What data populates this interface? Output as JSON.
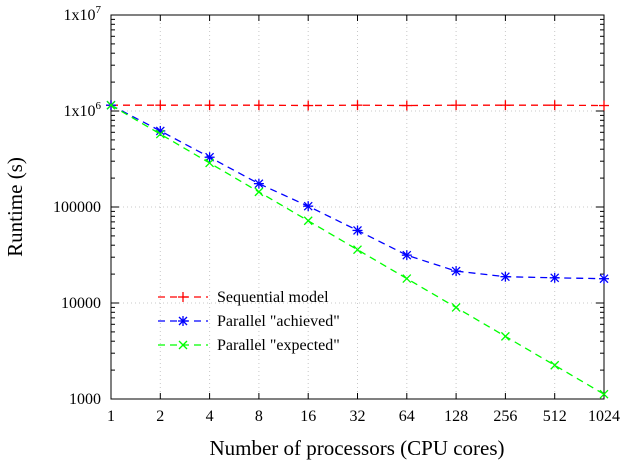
{
  "chart_data": {
    "type": "line",
    "title": "",
    "xlabel": "Number of processors (CPU cores)",
    "ylabel": "Runtime (s)",
    "x_scale": "log2",
    "y_scale": "log10",
    "x": [
      1,
      2,
      4,
      8,
      16,
      32,
      64,
      128,
      256,
      512,
      1024
    ],
    "x_tick_labels": [
      "1",
      "2",
      "4",
      "8",
      "16",
      "32",
      "64",
      "128",
      "256",
      "512",
      "1024"
    ],
    "ylim": [
      1000,
      10000000
    ],
    "y_ticks": [
      1000,
      10000,
      100000,
      1000000,
      10000000
    ],
    "y_tick_labels": [
      {
        "base": "1000",
        "sup": ""
      },
      {
        "base": "10000",
        "sup": ""
      },
      {
        "base": "100000",
        "sup": ""
      },
      {
        "base": "1x10",
        "sup": "6"
      },
      {
        "base": "1x10",
        "sup": "7"
      }
    ],
    "grid": true,
    "legend_position": "lower-left",
    "series": [
      {
        "name": "Sequential model",
        "color": "#ff0000",
        "marker": "plus",
        "values": [
          1150000,
          1150000,
          1150000,
          1150000,
          1140000,
          1150000,
          1140000,
          1150000,
          1150000,
          1150000,
          1140000
        ]
      },
      {
        "name": "Parallel \"achieved\"",
        "color": "#0000ff",
        "marker": "star",
        "values": [
          1150000,
          620000,
          330000,
          175000,
          102000,
          57000,
          31500,
          21500,
          18800,
          18300,
          17900
        ]
      },
      {
        "name": "Parallel \"expected\"",
        "color": "#00ff00",
        "marker": "cross",
        "values": [
          1150000,
          575000,
          287500,
          143750,
          71875,
          35937,
          17968,
          8984,
          4492,
          2246,
          1123
        ]
      }
    ]
  }
}
